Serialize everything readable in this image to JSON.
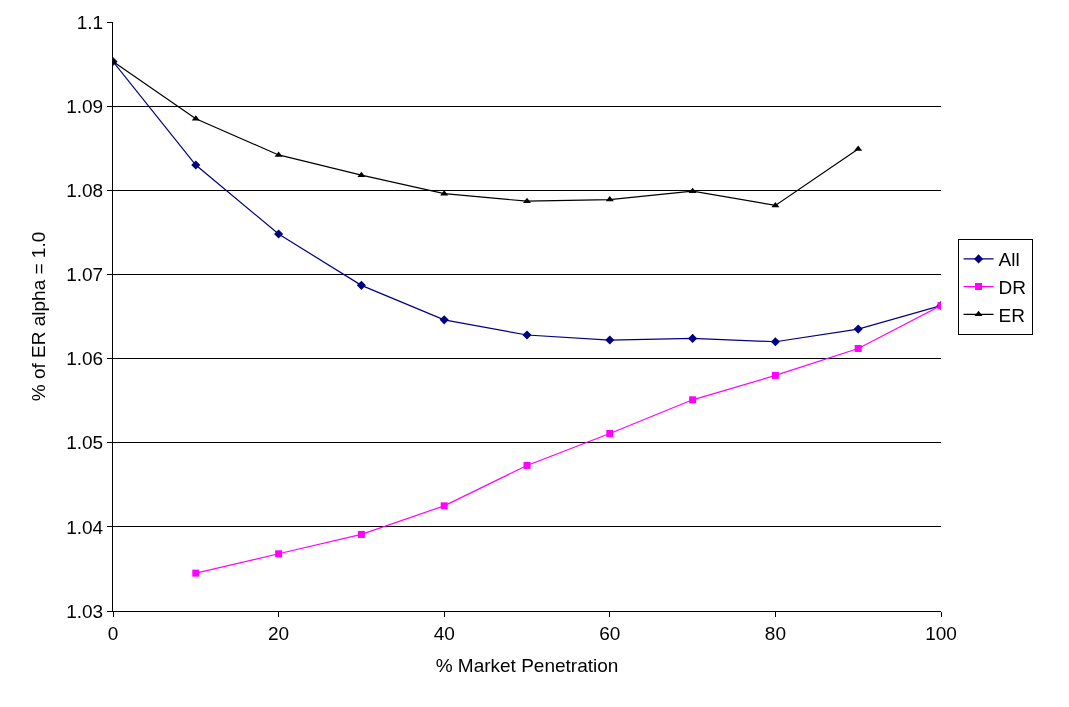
{
  "chart_data": {
    "type": "line",
    "xlabel": "% Market Penetration",
    "ylabel": "% of ER alpha = 1.0",
    "x": [
      0,
      10,
      20,
      30,
      40,
      50,
      60,
      70,
      80,
      90,
      100
    ],
    "series": [
      {
        "name": "All",
        "color": "#000080",
        "marker": "diamond",
        "values": [
          1.0953,
          1.083,
          1.0748,
          1.0687,
          1.0646,
          1.0628,
          1.0622,
          1.0624,
          1.062,
          1.0635,
          1.0663
        ]
      },
      {
        "name": "DR",
        "color": "#ff00ff",
        "marker": "square",
        "values": [
          null,
          1.0345,
          1.0368,
          1.0391,
          1.0425,
          1.0473,
          1.0511,
          1.0551,
          1.058,
          1.0612,
          1.0663
        ]
      },
      {
        "name": "ER",
        "color": "#000000",
        "marker": "triangle",
        "values": [
          1.0953,
          1.0885,
          1.0842,
          1.0818,
          1.0796,
          1.0787,
          1.0789,
          1.0799,
          1.0782,
          1.0849,
          null
        ]
      }
    ],
    "xlim": [
      0,
      100
    ],
    "xticks": [
      0,
      20,
      40,
      60,
      80,
      100
    ],
    "ylim": [
      1.03,
      1.1
    ],
    "yticks": [
      1.03,
      1.04,
      1.05,
      1.06,
      1.07,
      1.08,
      1.09,
      1.1
    ],
    "grid": "y",
    "legend": "right",
    "line_style": "solid"
  }
}
